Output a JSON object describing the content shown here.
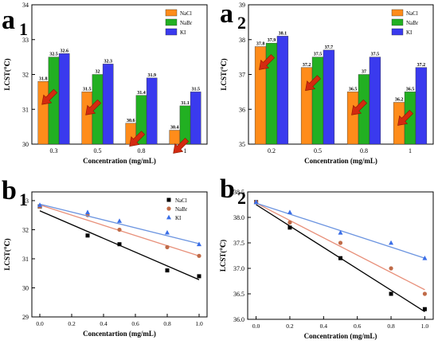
{
  "chart_data": [
    {
      "panel_letter": "a",
      "panel_sub": "1",
      "type": "bar",
      "xlabel": "Concentration (mg/mL)",
      "ylabel": "LCST(℃)",
      "ylim": [
        30,
        34
      ],
      "yticks": [
        30,
        31,
        32,
        33,
        34
      ],
      "categories": [
        "0.3",
        "0.5",
        "0.8",
        "1"
      ],
      "series": [
        {
          "name": "NaCl",
          "color": "#ff8c1a",
          "values": [
            31.8,
            31.5,
            30.6,
            30.4
          ],
          "labels": [
            "31.8",
            "31.5",
            "30.6",
            "30.4"
          ]
        },
        {
          "name": "NaBr",
          "color": "#22b022",
          "values": [
            32.5,
            32.0,
            31.4,
            31.1
          ],
          "labels": [
            "32.5",
            "32",
            "31.4",
            "31.1"
          ]
        },
        {
          "name": "KI",
          "color": "#3a3aee",
          "values": [
            32.6,
            32.3,
            31.9,
            31.5
          ],
          "labels": [
            "32.6",
            "32.3",
            "31.9",
            "31.5"
          ]
        }
      ],
      "legend": "top-right",
      "annotations": "red down-left arrows over each group"
    },
    {
      "panel_letter": "a",
      "panel_sub": "2",
      "type": "bar",
      "xlabel": "Concentration (mg/mL)",
      "ylabel": "LCST(℃)",
      "ylim": [
        35,
        39
      ],
      "yticks": [
        35,
        36,
        37,
        38,
        39
      ],
      "categories": [
        "0.2",
        "0.5",
        "0.8",
        "1"
      ],
      "series": [
        {
          "name": "NaCl",
          "color": "#ff8c1a",
          "values": [
            37.8,
            37.2,
            36.5,
            36.2
          ],
          "labels": [
            "37.8",
            "37.2",
            "36.5",
            "36.2"
          ]
        },
        {
          "name": "NaBr",
          "color": "#22b022",
          "values": [
            37.9,
            37.5,
            37.0,
            36.5
          ],
          "labels": [
            "37.9",
            "37.5",
            "37",
            "36.5"
          ]
        },
        {
          "name": "KI",
          "color": "#3a3aee",
          "values": [
            38.1,
            37.7,
            37.5,
            37.2
          ],
          "labels": [
            "38.1",
            "37.7",
            "37.5",
            "37.2"
          ]
        }
      ],
      "legend": "top-right",
      "annotations": "red down-left arrows over each group"
    },
    {
      "panel_letter": "b",
      "panel_sub": "1",
      "type": "scatter",
      "xlabel": "Concentartion (mg/mL)",
      "ylabel": "LCST(℃)",
      "xlim": [
        -0.05,
        1.05
      ],
      "ylim": [
        29,
        33.3
      ],
      "xticks": [
        0.0,
        0.2,
        0.4,
        0.6,
        0.8,
        1.0
      ],
      "xtick_labels": [
        "0.0",
        "0.2",
        "0.4",
        "0.6",
        "0.8",
        "1.0"
      ],
      "yticks": [
        29,
        30,
        31,
        32,
        33
      ],
      "series": [
        {
          "name": "NaCl",
          "marker": "square",
          "color": "#000000",
          "line_color": "#000000",
          "x": [
            0,
            0.3,
            0.5,
            0.8,
            1.0
          ],
          "y": [
            32.8,
            31.8,
            31.5,
            30.6,
            30.4
          ],
          "fit": [
            32.65,
            30.28
          ]
        },
        {
          "name": "NaBr",
          "marker": "circle",
          "color": "#c06b48",
          "line_color": "#e8907a",
          "x": [
            0,
            0.3,
            0.5,
            0.8,
            1.0
          ],
          "y": [
            32.8,
            32.5,
            32.0,
            31.4,
            31.1
          ],
          "fit": [
            32.85,
            31.1
          ]
        },
        {
          "name": "KI",
          "marker": "triangle",
          "color": "#3a6ee8",
          "line_color": "#6b94e0",
          "x": [
            0,
            0.3,
            0.5,
            0.8,
            1.0
          ],
          "y": [
            32.85,
            32.6,
            32.3,
            31.9,
            31.5
          ],
          "fit": [
            32.88,
            31.52
          ]
        }
      ],
      "legend": "top-right"
    },
    {
      "panel_letter": "b",
      "panel_sub": "2",
      "type": "scatter",
      "xlabel": "Concentration (mg/mL)",
      "ylabel": "LCST(℃)",
      "xlim": [
        -0.05,
        1.05
      ],
      "ylim": [
        36.0,
        38.5
      ],
      "xticks": [
        0.0,
        0.2,
        0.4,
        0.6,
        0.8,
        1.0
      ],
      "xtick_labels": [
        "0.0",
        "0.2",
        "0.4",
        "0.6",
        "0.8",
        "1.0"
      ],
      "yticks": [
        36.0,
        36.5,
        37.0,
        37.5,
        38.0,
        38.5
      ],
      "ytick_labels": [
        "36.0",
        "36.5",
        "37.0",
        "37.5",
        "38.0",
        "38.5"
      ],
      "series": [
        {
          "name": "",
          "marker": "square",
          "color": "#000000",
          "line_color": "#000000",
          "x": [
            0,
            0.2,
            0.5,
            0.8,
            1.0
          ],
          "y": [
            38.3,
            37.8,
            37.2,
            36.5,
            36.2
          ],
          "fit": [
            38.25,
            36.15
          ]
        },
        {
          "name": "",
          "marker": "circle",
          "color": "#c06b48",
          "line_color": "#e8907a",
          "x": [
            0,
            0.2,
            0.5,
            0.8,
            1.0
          ],
          "y": [
            38.3,
            37.9,
            37.5,
            37.0,
            36.5
          ],
          "fit": [
            38.28,
            36.58
          ]
        },
        {
          "name": "",
          "marker": "triangle",
          "color": "#3a6ee8",
          "line_color": "#6b94e0",
          "x": [
            0,
            0.2,
            0.5,
            0.8,
            1.0
          ],
          "y": [
            38.3,
            38.1,
            37.7,
            37.5,
            37.2
          ],
          "fit": [
            38.28,
            37.2
          ]
        }
      ],
      "legend": "none"
    }
  ]
}
